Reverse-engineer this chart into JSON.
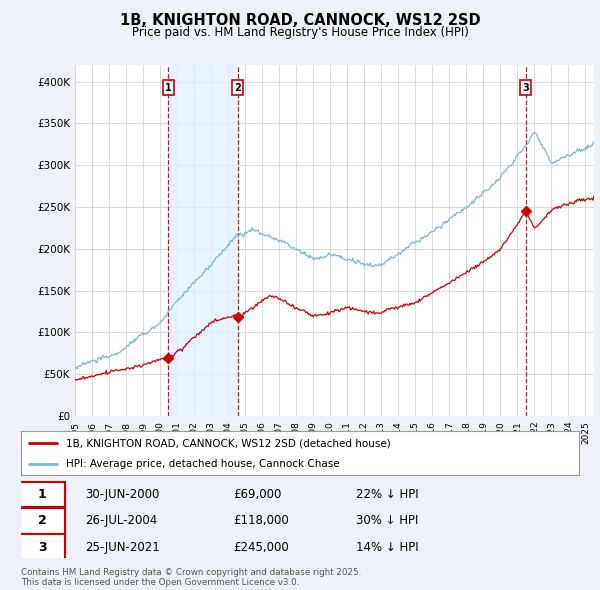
{
  "title": "1B, KNIGHTON ROAD, CANNOCK, WS12 2SD",
  "subtitle": "Price paid vs. HM Land Registry's House Price Index (HPI)",
  "hpi_color": "#7ab8d9",
  "sale_color": "#cc0000",
  "vline_color": "#cc0000",
  "shade_color": "#ddeeff",
  "bg_color": "#eef2f8",
  "plot_bg": "#ffffff",
  "ylim": [
    0,
    420000
  ],
  "yticks": [
    0,
    50000,
    100000,
    150000,
    200000,
    250000,
    300000,
    350000,
    400000
  ],
  "ytick_labels": [
    "£0",
    "£50K",
    "£100K",
    "£150K",
    "£200K",
    "£250K",
    "£300K",
    "£350K",
    "£400K"
  ],
  "xmin": 1995,
  "xmax": 2025.5,
  "sales": [
    {
      "date": 2000.49,
      "price": 69000,
      "label": "1",
      "pct": "22% ↓ HPI",
      "display_date": "30-JUN-2000"
    },
    {
      "date": 2004.56,
      "price": 118000,
      "label": "2",
      "pct": "30% ↓ HPI",
      "display_date": "26-JUL-2004"
    },
    {
      "date": 2021.48,
      "price": 245000,
      "label": "3",
      "pct": "14% ↓ HPI",
      "display_date": "25-JUN-2021"
    }
  ],
  "legend_property_label": "1B, KNIGHTON ROAD, CANNOCK, WS12 2SD (detached house)",
  "legend_hpi_label": "HPI: Average price, detached house, Cannock Chase",
  "footer_line1": "Contains HM Land Registry data © Crown copyright and database right 2025.",
  "footer_line2": "This data is licensed under the Open Government Licence v3.0."
}
